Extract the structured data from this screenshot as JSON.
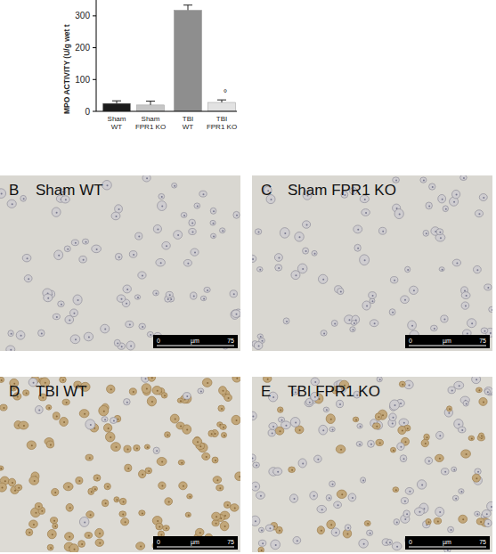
{
  "chart_data": {
    "type": "bar",
    "y_label": "MPO ACTIVITY (U/g wet t",
    "categories": [
      "Sham WT",
      "Sham FPR1 KO",
      "TBI WT",
      "TBI FPR1 KO"
    ],
    "values": [
      25,
      20,
      318,
      28
    ],
    "errors": [
      8,
      12,
      16,
      8
    ],
    "colors": [
      "#1c1c1c",
      "#c6c6c6",
      "#8e8e8e",
      "#e2e2e2"
    ],
    "ylim": [
      0,
      350
    ],
    "yticks": [
      0,
      100,
      200,
      300
    ],
    "grid": false,
    "annotations": [
      {
        "text": "°",
        "category": "TBI FPR1 KO"
      }
    ]
  },
  "panels": [
    {
      "letter": "B",
      "title": "Sham WT",
      "scale_bar": {
        "start": 0,
        "unit": "µm",
        "end": 75
      }
    },
    {
      "letter": "C",
      "title": "Sham FPR1 KO",
      "scale_bar": {
        "start": 0,
        "unit": "µm",
        "end": 75
      }
    },
    {
      "letter": "D",
      "title": "TBI WT",
      "scale_bar": {
        "start": 0,
        "unit": "µm",
        "end": 75
      }
    },
    {
      "letter": "E",
      "title": "TBI FPR1 KO",
      "scale_bar": {
        "start": 0,
        "unit": "µm",
        "end": 75
      }
    }
  ]
}
